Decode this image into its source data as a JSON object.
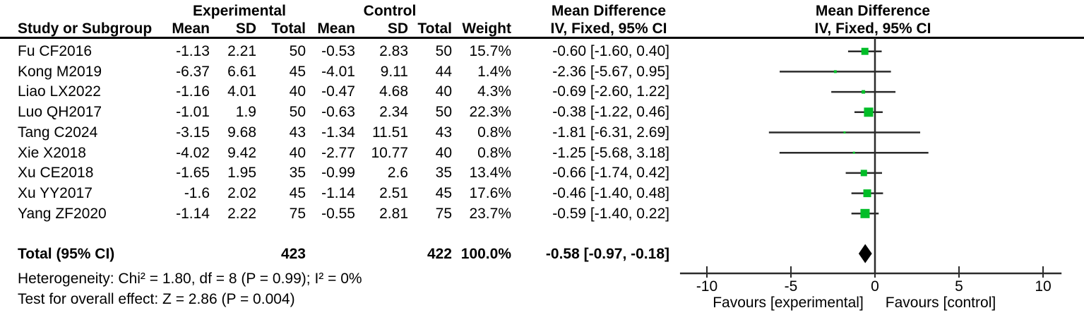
{
  "header": {
    "group_experimental": "Experimental",
    "group_control": "Control",
    "md_col_title": "Mean Difference",
    "md_plot_title": "Mean Difference",
    "col_study": "Study or Subgroup",
    "col_mean_e": "Mean",
    "col_sd_e": "SD",
    "col_total_e": "Total",
    "col_mean_c": "Mean",
    "col_sd_c": "SD",
    "col_total_c": "Total",
    "col_weight": "Weight",
    "md_col_sub": "IV, Fixed, 95% CI",
    "md_plot_sub": "IV, Fixed, 95% CI"
  },
  "studies": [
    {
      "name": "Fu CF2016",
      "mean_e": "-1.13",
      "sd_e": "2.21",
      "total_e": "50",
      "mean_c": "-0.53",
      "sd_c": "2.83",
      "total_c": "50",
      "weight": "15.7%",
      "ci": "-0.60 [-1.60, 0.40]"
    },
    {
      "name": "Kong M2019",
      "mean_e": "-6.37",
      "sd_e": "6.61",
      "total_e": "45",
      "mean_c": "-4.01",
      "sd_c": "9.11",
      "total_c": "44",
      "weight": "1.4%",
      "ci": "-2.36 [-5.67, 0.95]"
    },
    {
      "name": "Liao LX2022",
      "mean_e": "-1.16",
      "sd_e": "4.01",
      "total_e": "40",
      "mean_c": "-0.47",
      "sd_c": "4.68",
      "total_c": "40",
      "weight": "4.3%",
      "ci": "-0.69 [-2.60, 1.22]"
    },
    {
      "name": "Luo QH2017",
      "mean_e": "-1.01",
      "sd_e": "1.9",
      "total_e": "50",
      "mean_c": "-0.63",
      "sd_c": "2.34",
      "total_c": "50",
      "weight": "22.3%",
      "ci": "-0.38 [-1.22, 0.46]"
    },
    {
      "name": "Tang C2024",
      "mean_e": "-3.15",
      "sd_e": "9.68",
      "total_e": "43",
      "mean_c": "-1.34",
      "sd_c": "11.51",
      "total_c": "43",
      "weight": "0.8%",
      "ci": "-1.81 [-6.31, 2.69]"
    },
    {
      "name": "Xie X2018",
      "mean_e": "-4.02",
      "sd_e": "9.42",
      "total_e": "40",
      "mean_c": "-2.77",
      "sd_c": "10.77",
      "total_c": "40",
      "weight": "0.8%",
      "ci": "-1.25 [-5.68, 3.18]"
    },
    {
      "name": "Xu CE2018",
      "mean_e": "-1.65",
      "sd_e": "1.95",
      "total_e": "35",
      "mean_c": "-0.99",
      "sd_c": "2.6",
      "total_c": "35",
      "weight": "13.4%",
      "ci": "-0.66 [-1.74, 0.42]"
    },
    {
      "name": "Xu YY2017",
      "mean_e": "-1.6",
      "sd_e": "2.02",
      "total_e": "45",
      "mean_c": "-1.14",
      "sd_c": "2.51",
      "total_c": "45",
      "weight": "17.6%",
      "ci": "-0.46 [-1.40, 0.48]"
    },
    {
      "name": "Yang ZF2020",
      "mean_e": "-1.14",
      "sd_e": "2.22",
      "total_e": "75",
      "mean_c": "-0.55",
      "sd_c": "2.81",
      "total_c": "75",
      "weight": "23.7%",
      "ci": "-0.59 [-1.40, 0.22]"
    }
  ],
  "total_row": {
    "label": "Total (95% CI)",
    "total_e": "423",
    "total_c": "422",
    "weight": "100.0%",
    "ci": "-0.58 [-0.97, -0.18]"
  },
  "footer": {
    "heterogeneity": "Heterogeneity: Chi² = 1.80, df = 8 (P = 0.99); I² = 0%",
    "overall_effect": "Test for overall effect: Z = 2.86 (P = 0.004)"
  },
  "colors": {
    "marker_green": "#00bd27",
    "line": "#2b2b2b",
    "diamond": "#000000"
  },
  "chart_data": {
    "type": "forest",
    "effect_measure": "Mean Difference, IV, Fixed, 95% CI",
    "x_ticks": [
      -10,
      -5,
      0,
      5,
      10
    ],
    "x_axis_range": [
      -11.6,
      11.1
    ],
    "null_line": 0,
    "favours_left": "Favours [experimental]",
    "favours_right": "Favours [control]",
    "studies": [
      {
        "name": "Fu CF2016",
        "md": -0.6,
        "ci_low": -1.6,
        "ci_high": 0.4,
        "weight_pct": 15.7
      },
      {
        "name": "Kong M2019",
        "md": -2.36,
        "ci_low": -5.67,
        "ci_high": 0.95,
        "weight_pct": 1.4
      },
      {
        "name": "Liao LX2022",
        "md": -0.69,
        "ci_low": -2.6,
        "ci_high": 1.22,
        "weight_pct": 4.3
      },
      {
        "name": "Luo QH2017",
        "md": -0.38,
        "ci_low": -1.22,
        "ci_high": 0.46,
        "weight_pct": 22.3
      },
      {
        "name": "Tang C2024",
        "md": -1.81,
        "ci_low": -6.31,
        "ci_high": 2.69,
        "weight_pct": 0.8
      },
      {
        "name": "Xie X2018",
        "md": -1.25,
        "ci_low": -5.68,
        "ci_high": 3.18,
        "weight_pct": 0.8
      },
      {
        "name": "Xu CE2018",
        "md": -0.66,
        "ci_low": -1.74,
        "ci_high": 0.42,
        "weight_pct": 13.4
      },
      {
        "name": "Xu YY2017",
        "md": -0.46,
        "ci_low": -1.4,
        "ci_high": 0.48,
        "weight_pct": 17.6
      },
      {
        "name": "Yang ZF2020",
        "md": -0.59,
        "ci_low": -1.4,
        "ci_high": 0.22,
        "weight_pct": 23.7
      }
    ],
    "total": {
      "name": "Total (95% CI)",
      "md": -0.58,
      "ci_low": -0.97,
      "ci_high": -0.18,
      "weight_pct": 100.0
    },
    "heterogeneity": {
      "chi2": 1.8,
      "df": 8,
      "p": 0.99,
      "i2_pct": 0
    },
    "overall_effect": {
      "z": 2.86,
      "p": 0.004
    }
  }
}
